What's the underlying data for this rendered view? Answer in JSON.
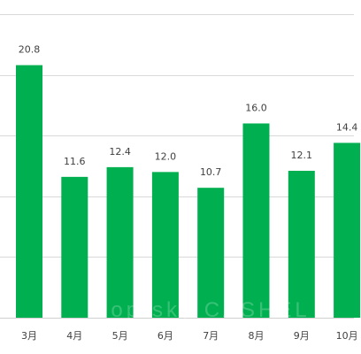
{
  "chart_data": {
    "type": "bar",
    "categories": [
      "3月",
      "4月",
      "5月",
      "6月",
      "7月",
      "8月",
      "9月",
      "10月"
    ],
    "values": [
      20.8,
      11.6,
      12.4,
      12.0,
      10.7,
      16.0,
      12.1,
      14.4
    ],
    "data_labels": [
      "20.8",
      "11.6",
      "12.4",
      "12.0",
      "10.7",
      "16.0",
      "12.1",
      "14.4"
    ],
    "title": "",
    "xlabel": "",
    "ylabel": "",
    "ylim": [
      0,
      25
    ],
    "gridlines": [
      0,
      5,
      10,
      15,
      20,
      25
    ],
    "grid": true,
    "legend": "none",
    "bar_color": "#00B050",
    "grid_color": "#d9d9d9",
    "text_color": "#404040"
  }
}
